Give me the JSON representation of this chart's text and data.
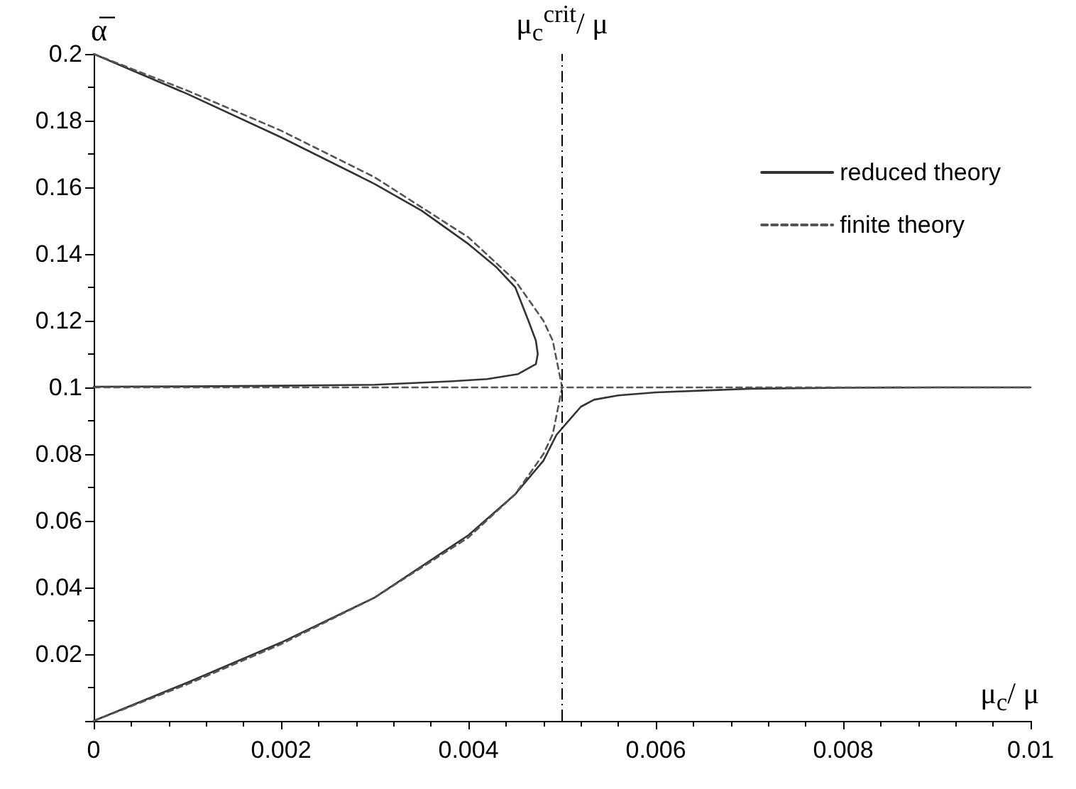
{
  "chart_data": {
    "type": "line",
    "xlabel": "μ$_{c}$/ μ",
    "ylabel": "α̅",
    "xlim": [
      0,
      0.01
    ],
    "xticks": [
      0,
      0.002,
      0.004,
      0.006,
      0.008,
      0.01
    ],
    "ylim": [
      0,
      0.2
    ],
    "yticks": [
      {
        "value": 0,
        "label": null
      },
      0.02,
      0.04,
      0.06,
      0.08,
      0.1,
      0.12,
      0.14,
      0.16,
      0.18,
      0.2
    ],
    "series": [
      {
        "name": "reduced theory",
        "color": "#333333",
        "line_style": "solid",
        "x": [
          0,
          0.001,
          0.002,
          0.003,
          0.0035,
          0.004,
          0.0043,
          0.0045,
          0.00464,
          0.00472,
          0.00474,
          0.00472,
          0.00453,
          0.0042,
          0.0038,
          0.003,
          0.002,
          0.001,
          0,
          null,
          0,
          0.001,
          0.002,
          0.003,
          0.004,
          0.0045,
          0.0048,
          0.00494,
          0.0051,
          0.0052,
          0.00534,
          0.0056,
          0.006,
          0.007,
          0.008,
          0.009,
          0.01
        ],
        "values": [
          0.2,
          0.188,
          0.175,
          0.161,
          0.153,
          0.143,
          0.136,
          0.13,
          0.12,
          0.114,
          0.11,
          0.107,
          0.104,
          0.1025,
          0.1018,
          0.1008,
          0.1005,
          0.1003,
          0.1002,
          null,
          0,
          0.0115,
          0.0235,
          0.037,
          0.0557,
          0.068,
          0.078,
          0.0858,
          0.091,
          0.0942,
          0.0963,
          0.0976,
          0.0985,
          0.0996,
          0.0999,
          0.1,
          0.1
        ]
      },
      {
        "name": "finite theory",
        "color": "#555555",
        "line_style": "dashed",
        "x": [
          0,
          0.001,
          0.002,
          0.003,
          0.004,
          0.0045,
          0.0048,
          0.0049,
          0.005,
          0.0075,
          0.01,
          null,
          0,
          0.001,
          0.002,
          0.003,
          0.004,
          0.0045,
          0.0048,
          0.0049,
          0.005,
          0.0025,
          0
        ],
        "values": [
          0.2,
          0.189,
          0.177,
          0.163,
          0.145,
          0.132,
          0.12,
          0.114,
          0.1,
          0.1,
          0.1,
          null,
          0,
          0.011,
          0.023,
          0.037,
          0.055,
          0.068,
          0.08,
          0.086,
          0.1,
          0.1,
          0.1
        ]
      }
    ],
    "ref_lines": [
      {
        "axis": "x",
        "value": 0.005,
        "label": "μ$_{c}$$^{crit}$/ μ",
        "color": "#000000",
        "line_style": "dashdot"
      }
    ],
    "legend": "top right",
    "grid": false,
    "marker": "none"
  }
}
